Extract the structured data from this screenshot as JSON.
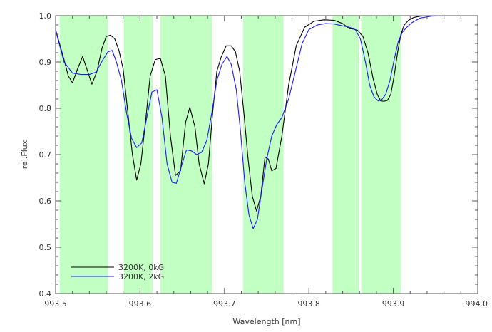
{
  "chart_data": {
    "type": "line",
    "xlabel": "Wavelength [nm]",
    "ylabel": "rel.Flux",
    "xlim": [
      993.5,
      994.0
    ],
    "ylim": [
      0.4,
      1.0
    ],
    "x_ticks": [
      "993.5",
      "993.6",
      "993.7",
      "993.8",
      "993.9",
      "994.0"
    ],
    "y_ticks": [
      "0.4",
      "0.5",
      "0.6",
      "0.7",
      "0.8",
      "0.9",
      "1.0"
    ],
    "grid": false,
    "legend_position": "bottom-left",
    "shaded_regions": [
      [
        993.505,
        993.562
      ],
      [
        993.581,
        993.615
      ],
      [
        993.624,
        993.685
      ],
      [
        993.722,
        993.77
      ],
      [
        993.828,
        993.859
      ],
      [
        993.862,
        993.909
      ]
    ],
    "shading_color": "#c2ffc2",
    "series": [
      {
        "name": "3200K, 0kG",
        "color": "#000000",
        "x": [
          993.5,
          993.51,
          993.515,
          993.52,
          993.526,
          993.532,
          993.537,
          993.543,
          993.549,
          993.555,
          993.56,
          993.565,
          993.57,
          993.575,
          993.58,
          993.585,
          993.591,
          993.596,
          993.601,
          993.607,
          993.612,
          993.618,
          993.624,
          993.63,
          993.636,
          993.642,
          993.648,
          993.654,
          993.659,
          993.665,
          993.67,
          993.676,
          993.681,
          993.686,
          993.691,
          993.696,
          993.702,
          993.708,
          993.713,
          993.718,
          993.723,
          993.728,
          993.733,
          993.738,
          993.743,
          993.748,
          993.752,
          993.756,
          993.761,
          993.768,
          993.776,
          993.785,
          993.795,
          993.806,
          993.818,
          993.83,
          993.84,
          993.848,
          993.853,
          993.858,
          993.864,
          993.87,
          993.876,
          993.881,
          993.885,
          993.889,
          993.893,
          993.897,
          993.901,
          993.905,
          993.909,
          993.913,
          993.918,
          993.924,
          993.932,
          993.945,
          993.96,
          993.975,
          993.99,
          994.0
        ],
        "y": [
          0.97,
          0.905,
          0.87,
          0.855,
          0.885,
          0.912,
          0.885,
          0.852,
          0.88,
          0.93,
          0.955,
          0.958,
          0.95,
          0.925,
          0.885,
          0.8,
          0.7,
          0.645,
          0.68,
          0.78,
          0.87,
          0.905,
          0.908,
          0.87,
          0.74,
          0.655,
          0.665,
          0.77,
          0.802,
          0.76,
          0.68,
          0.637,
          0.68,
          0.79,
          0.88,
          0.91,
          0.935,
          0.935,
          0.922,
          0.88,
          0.79,
          0.69,
          0.61,
          0.578,
          0.61,
          0.695,
          0.69,
          0.665,
          0.67,
          0.74,
          0.85,
          0.935,
          0.975,
          0.988,
          0.991,
          0.99,
          0.983,
          0.972,
          0.971,
          0.968,
          0.955,
          0.92,
          0.865,
          0.83,
          0.816,
          0.815,
          0.817,
          0.83,
          0.87,
          0.92,
          0.96,
          0.98,
          0.99,
          0.996,
          0.999,
          1.0,
          1.0,
          1.0,
          1.0,
          1.0
        ]
      },
      {
        "name": "3200K, 2kG",
        "color": "#1a1aff",
        "x": [
          993.5,
          993.51,
          993.52,
          993.53,
          993.54,
          993.548,
          993.555,
          993.562,
          993.567,
          993.572,
          993.578,
          993.584,
          993.59,
          993.596,
          993.602,
          993.608,
          993.614,
          993.62,
          993.626,
          993.632,
          993.638,
          993.643,
          993.649,
          993.655,
          993.661,
          993.667,
          993.673,
          993.679,
          993.685,
          993.691,
          993.697,
          993.703,
          993.708,
          993.714,
          993.719,
          993.724,
          993.729,
          993.734,
          993.739,
          993.744,
          993.75,
          993.756,
          993.762,
          993.768,
          993.776,
          993.784,
          993.792,
          993.8,
          993.81,
          993.82,
          993.83,
          993.84,
          993.848,
          993.855,
          993.861,
          993.867,
          993.872,
          993.877,
          993.882,
          993.886,
          993.891,
          993.896,
          993.901,
          993.906,
          993.911,
          993.916,
          993.922,
          993.932,
          993.945,
          993.96,
          993.975,
          993.99,
          994.0
        ],
        "y": [
          0.968,
          0.9,
          0.876,
          0.873,
          0.873,
          0.878,
          0.902,
          0.922,
          0.925,
          0.9,
          0.86,
          0.79,
          0.735,
          0.715,
          0.725,
          0.78,
          0.835,
          0.84,
          0.78,
          0.68,
          0.64,
          0.638,
          0.675,
          0.71,
          0.708,
          0.7,
          0.705,
          0.73,
          0.79,
          0.86,
          0.895,
          0.912,
          0.895,
          0.84,
          0.75,
          0.64,
          0.57,
          0.54,
          0.56,
          0.62,
          0.69,
          0.74,
          0.765,
          0.78,
          0.82,
          0.88,
          0.94,
          0.97,
          0.98,
          0.983,
          0.982,
          0.978,
          0.975,
          0.97,
          0.95,
          0.9,
          0.85,
          0.825,
          0.816,
          0.818,
          0.83,
          0.86,
          0.905,
          0.945,
          0.965,
          0.975,
          0.985,
          0.995,
          0.999,
          1.0,
          1.0,
          1.0,
          1.0
        ]
      }
    ]
  }
}
